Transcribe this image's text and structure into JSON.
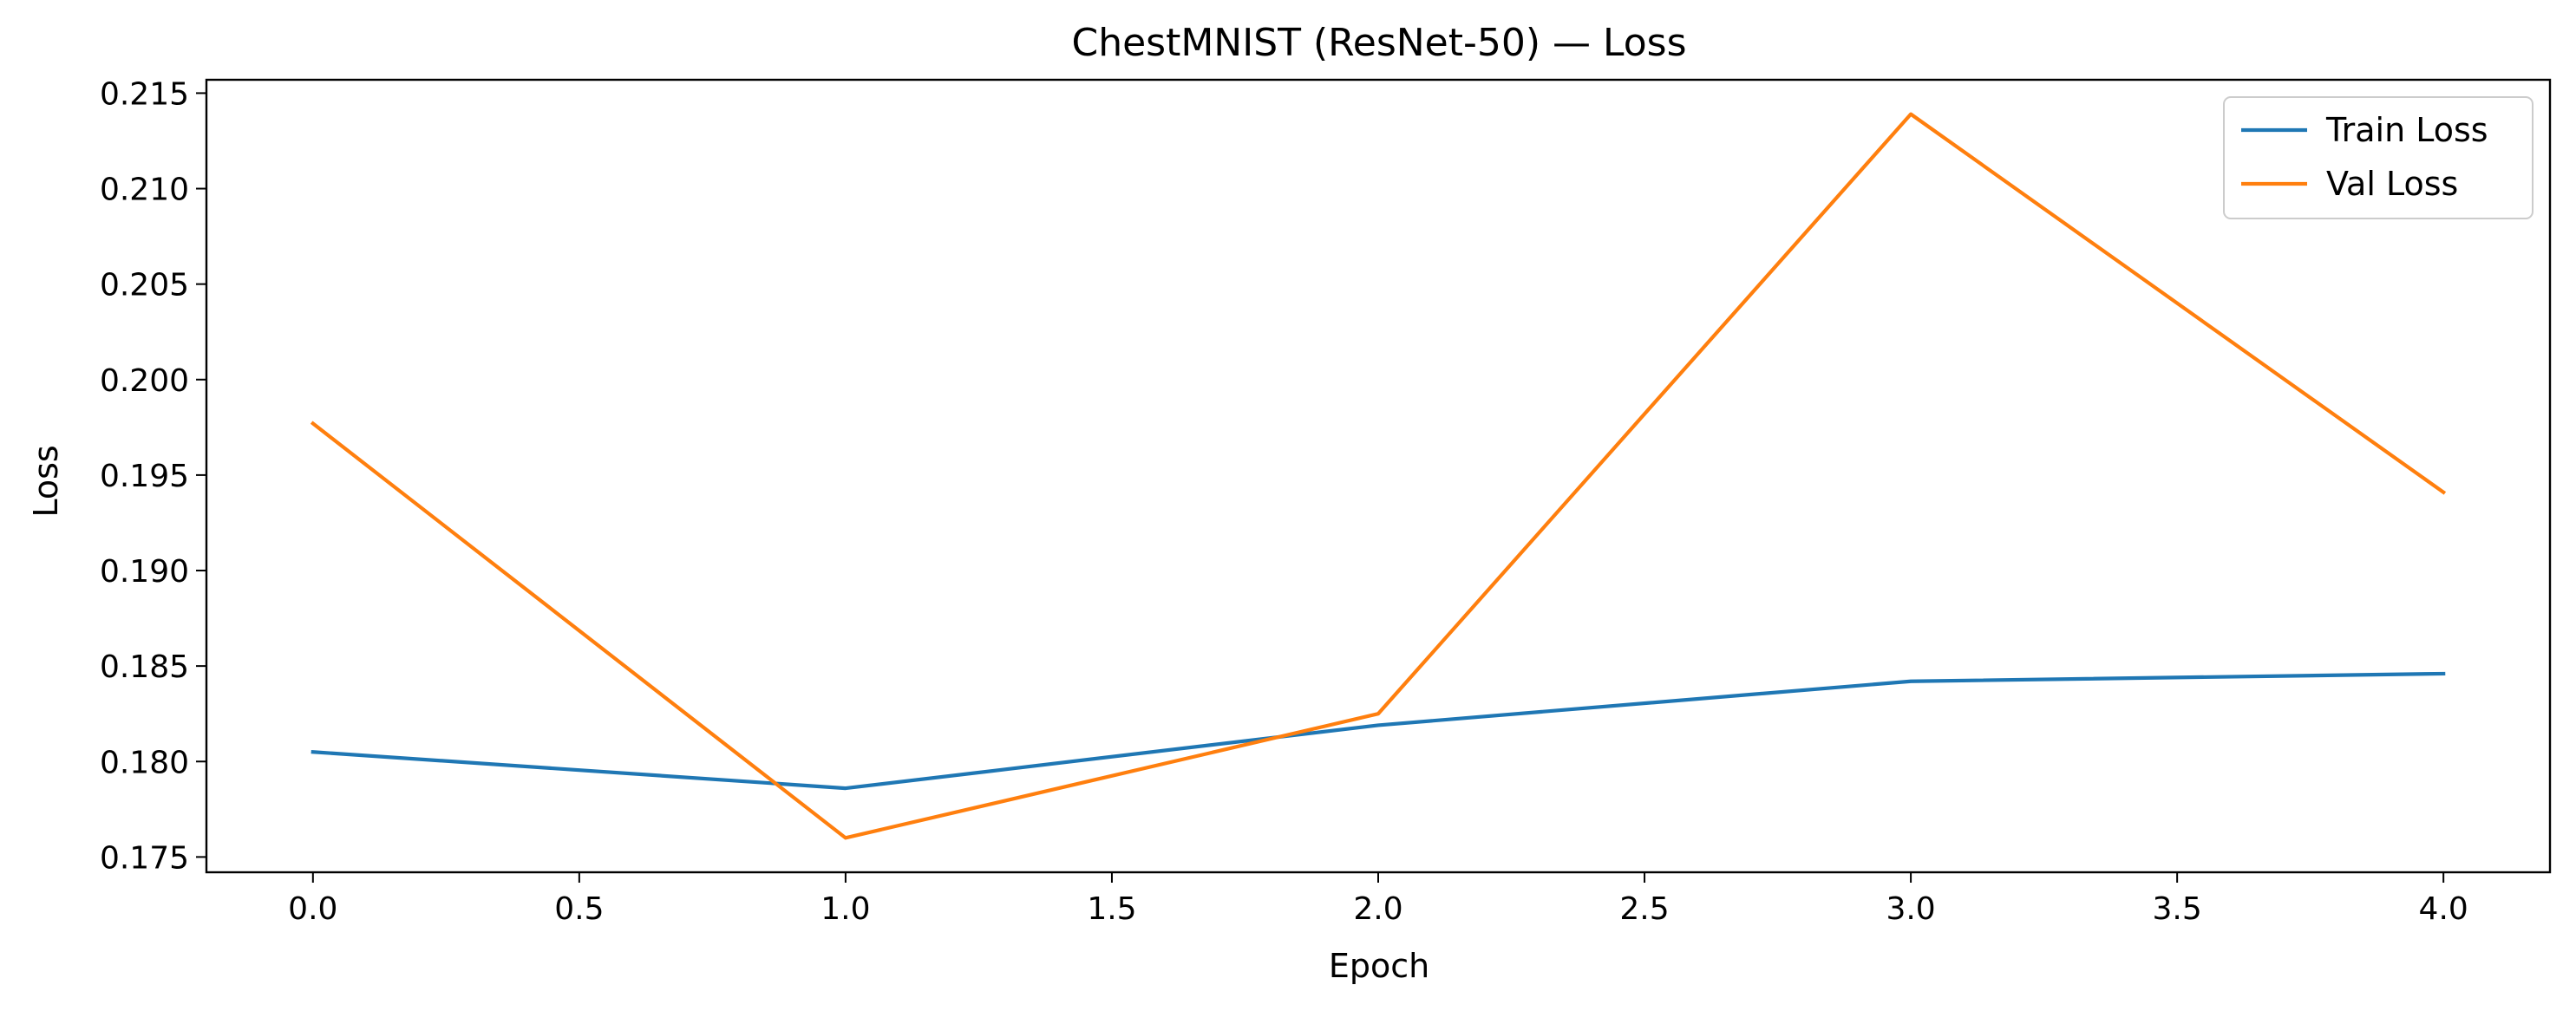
{
  "chart_data": {
    "type": "line",
    "title": "ChestMNIST (ResNet-50) — Loss",
    "xlabel": "Epoch",
    "ylabel": "Loss",
    "xlim": [
      -0.2,
      4.2
    ],
    "ylim": [
      0.1742,
      0.2157
    ],
    "xticks": [
      "0.0",
      "0.5",
      "1.0",
      "1.5",
      "2.0",
      "2.5",
      "3.0",
      "3.5",
      "4.0"
    ],
    "yticks": [
      "0.175",
      "0.180",
      "0.185",
      "0.190",
      "0.195",
      "0.200",
      "0.205",
      "0.210",
      "0.215"
    ],
    "grid": false,
    "legend_position": "upper right",
    "x": [
      0,
      1,
      2,
      3,
      4
    ],
    "series": [
      {
        "name": "Train Loss",
        "color": "#1f77b4",
        "values": [
          0.1805,
          0.1786,
          0.1819,
          0.1842,
          0.1846
        ]
      },
      {
        "name": "Val Loss",
        "color": "#ff7f0e",
        "values": [
          0.1977,
          0.176,
          0.1825,
          0.2139,
          0.1941
        ]
      }
    ]
  }
}
